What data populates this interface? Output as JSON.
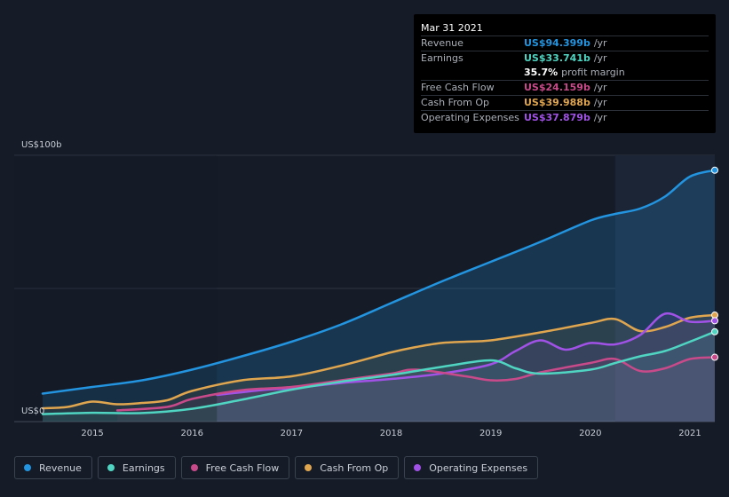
{
  "chart_data": {
    "type": "area",
    "title": "",
    "y_axis_labels": {
      "top": "US$100b",
      "bottom": "US$0"
    },
    "ylim": [
      0,
      100
    ],
    "xlim": [
      2014.5,
      2021.25
    ],
    "x_ticks": [
      "2015",
      "2016",
      "2017",
      "2018",
      "2019",
      "2020",
      "2021"
    ],
    "highlight_start": 2020.25,
    "past_data_end": 2016.25,
    "series": [
      {
        "name": "Revenue",
        "color": "#2394df",
        "x": [
          2014.5,
          2015.0,
          2015.5,
          2016.0,
          2016.5,
          2017.0,
          2017.5,
          2018.0,
          2018.5,
          2019.0,
          2019.5,
          2020.0,
          2020.25,
          2020.5,
          2020.75,
          2021.0,
          2021.25
        ],
        "values": [
          10.5,
          13,
          15.5,
          19.5,
          24.5,
          30,
          36.5,
          44.5,
          52.5,
          60,
          67.5,
          75.5,
          78,
          80,
          84.5,
          92,
          94.399
        ]
      },
      {
        "name": "Earnings",
        "color": "#4fd5c2",
        "x": [
          2014.5,
          2015.0,
          2015.5,
          2016.0,
          2016.5,
          2017.0,
          2017.5,
          2018.0,
          2018.5,
          2019.0,
          2019.25,
          2019.5,
          2020.0,
          2020.25,
          2020.5,
          2020.75,
          2021.0,
          2021.25
        ],
        "values": [
          2.8,
          3.3,
          3.2,
          4.8,
          8.2,
          12,
          15,
          17.5,
          20.5,
          23,
          20,
          18,
          19.5,
          22,
          24.5,
          26.5,
          30,
          33.741
        ]
      },
      {
        "name": "Free Cash Flow",
        "color": "#c94a8a",
        "x": [
          2015.25,
          2015.75,
          2016.0,
          2016.5,
          2017.0,
          2017.5,
          2018.0,
          2018.25,
          2018.75,
          2019.0,
          2019.25,
          2019.5,
          2020.0,
          2020.25,
          2020.5,
          2020.75,
          2021.0,
          2021.25
        ],
        "values": [
          4.2,
          5.5,
          8.5,
          11.8,
          13,
          15.5,
          18,
          19.5,
          17,
          15.5,
          16,
          18.5,
          22,
          23.5,
          19,
          20,
          23.5,
          24.159
        ]
      },
      {
        "name": "Cash From Op",
        "color": "#e0a54f",
        "x": [
          2014.5,
          2014.75,
          2015.0,
          2015.25,
          2015.5,
          2015.75,
          2016.0,
          2016.5,
          2017.0,
          2017.5,
          2018.0,
          2018.25,
          2018.5,
          2018.75,
          2019.0,
          2019.5,
          2020.0,
          2020.25,
          2020.5,
          2020.75,
          2021.0,
          2021.25
        ],
        "values": [
          5,
          5.5,
          7.5,
          6.5,
          7,
          8,
          11.5,
          15.5,
          17,
          21,
          26,
          28,
          29.5,
          30,
          30.5,
          33.5,
          37,
          38.5,
          34,
          35.5,
          39,
          39.988
        ]
      },
      {
        "name": "Operating Expenses",
        "color": "#a152e6",
        "x": [
          2016.25,
          2016.75,
          2017.0,
          2017.5,
          2018.0,
          2018.5,
          2019.0,
          2019.25,
          2019.5,
          2019.75,
          2020.0,
          2020.25,
          2020.5,
          2020.75,
          2021.0,
          2021.25
        ],
        "values": [
          10,
          12,
          12.5,
          14.5,
          16,
          18,
          21.5,
          26.5,
          30.5,
          27,
          29.5,
          29,
          32.5,
          40.5,
          37.5,
          37.879
        ]
      }
    ]
  },
  "tooltip": {
    "date": "Mar 31 2021",
    "rows": [
      {
        "label": "Revenue",
        "value": "US$94.399b",
        "unit": "/yr",
        "color": "#2394df"
      },
      {
        "label": "Earnings",
        "value": "US$33.741b",
        "unit": "/yr",
        "color": "#4fd5c2"
      },
      {
        "label": "",
        "margin_value": "35.7%",
        "margin_text": "profit margin"
      },
      {
        "label": "Free Cash Flow",
        "value": "US$24.159b",
        "unit": "/yr",
        "color": "#c94a8a"
      },
      {
        "label": "Cash From Op",
        "value": "US$39.988b",
        "unit": "/yr",
        "color": "#e0a54f"
      },
      {
        "label": "Operating Expenses",
        "value": "US$37.879b",
        "unit": "/yr",
        "color": "#a152e6"
      }
    ]
  },
  "legend": [
    {
      "label": "Revenue",
      "color": "#2394df"
    },
    {
      "label": "Earnings",
      "color": "#4fd5c2"
    },
    {
      "label": "Free Cash Flow",
      "color": "#c94a8a"
    },
    {
      "label": "Cash From Op",
      "color": "#e0a54f"
    },
    {
      "label": "Operating Expenses",
      "color": "#a152e6"
    }
  ]
}
